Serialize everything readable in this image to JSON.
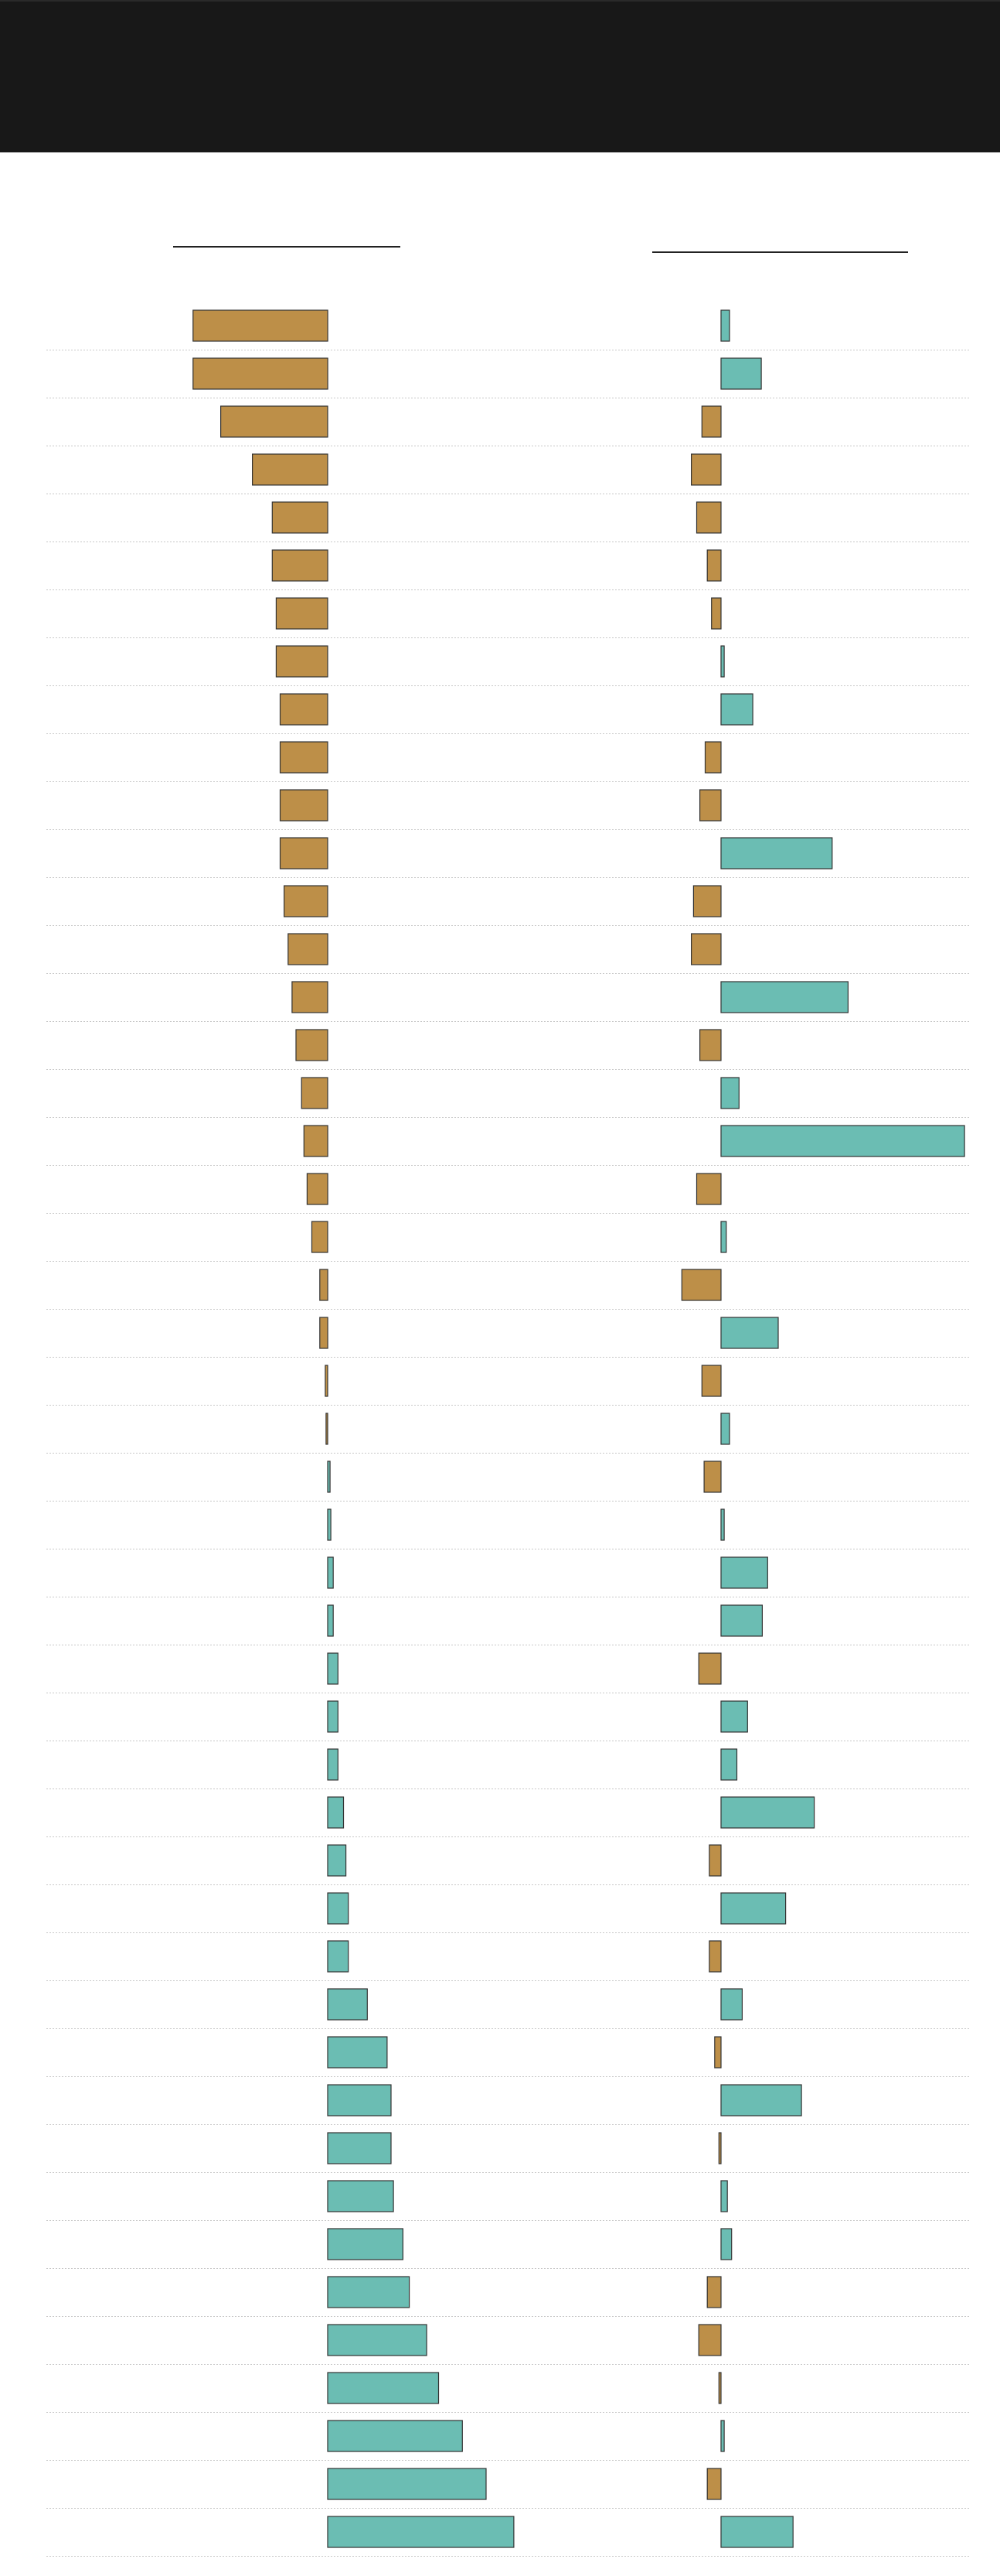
{
  "colors": {
    "header_background": "#181818",
    "negative": "#bd8f48",
    "positive": "#6bbdb3",
    "bar_outline": "#333333",
    "gridline": "#c8c8c8",
    "panel_rule": "#222222"
  },
  "chart_data": [
    {
      "type": "bar",
      "orientation": "horizontal",
      "grid": true,
      "legend": "none",
      "title": "",
      "xlabel": "",
      "ylabel": "",
      "xlim": [
        -17.5,
        23.5
      ],
      "values": [
        -17,
        -17,
        -13.5,
        -9.5,
        -7,
        -7,
        -6.5,
        -6.5,
        -6,
        -6,
        -6,
        -6,
        -5.5,
        -5,
        -4.5,
        -4,
        -3.3,
        -3,
        -2.6,
        -2,
        -1,
        -1,
        -0.3,
        -0.2,
        0.3,
        0.4,
        0.7,
        0.7,
        1.3,
        1.3,
        1.3,
        2,
        2.3,
        2.6,
        2.6,
        5,
        7.5,
        8,
        8,
        8.3,
        9.5,
        10.3,
        12.5,
        14,
        17,
        20,
        23.5
      ]
    },
    {
      "type": "bar",
      "orientation": "horizontal",
      "grid": true,
      "legend": "none",
      "title": "",
      "xlabel": "",
      "ylabel": "",
      "xlim": [
        -3.8,
        22.2
      ],
      "values": [
        0.8,
        3.8,
        -1.8,
        -2.8,
        -2.3,
        -1.3,
        -0.9,
        0.3,
        3,
        -1.5,
        -2,
        10.5,
        -2.6,
        -2.8,
        12,
        -2,
        1.7,
        23,
        -2.3,
        0.5,
        -3.7,
        5.4,
        -1.8,
        0.8,
        -1.6,
        0.3,
        4.4,
        3.9,
        -2.1,
        2.5,
        1.5,
        8.8,
        -1.1,
        6.1,
        -1.1,
        2,
        -0.6,
        7.6,
        -0.2,
        0.6,
        1,
        -1.3,
        -2.1,
        -0.2,
        0.3,
        -1.3,
        6.8
      ]
    }
  ]
}
